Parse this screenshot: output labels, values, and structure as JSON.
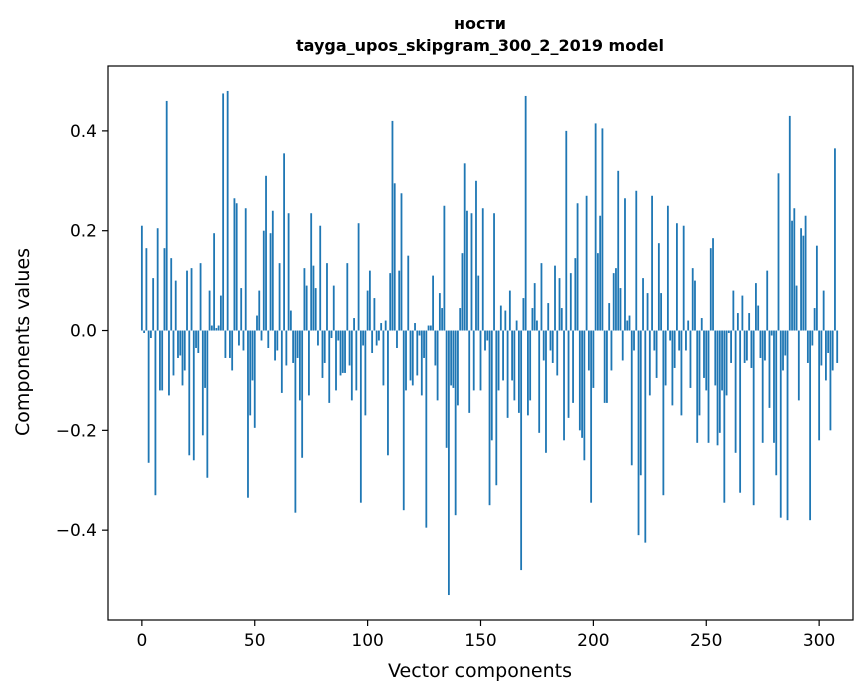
{
  "chart_data": {
    "type": "bar",
    "title": "ности\ntayga_upos_skipgram_300_2_2019 model",
    "title_lines": [
      "ности",
      "tayga_upos_skipgram_300_2_2019 model"
    ],
    "xlabel": "Vector components",
    "ylabel": "Components values",
    "xlim": [
      -15,
      315
    ],
    "ylim": [
      -0.58,
      0.53
    ],
    "xticks": [
      0,
      50,
      100,
      150,
      200,
      250,
      300
    ],
    "yticks": [
      -0.4,
      -0.2,
      0.0,
      0.2,
      0.4
    ],
    "ytick_labels": [
      "−0.4",
      "−0.2",
      "0.0",
      "0.2",
      "0.4"
    ],
    "grid": false,
    "bar_color": "#1f77b4",
    "values": [
      0.21,
      -0.005,
      0.165,
      -0.265,
      -0.015,
      0.105,
      -0.33,
      0.205,
      -0.12,
      -0.12,
      0.165,
      0.46,
      -0.13,
      0.145,
      -0.09,
      0.1,
      -0.055,
      -0.05,
      -0.11,
      -0.08,
      0.12,
      -0.25,
      0.125,
      -0.26,
      -0.035,
      -0.045,
      0.135,
      -0.21,
      -0.115,
      -0.295,
      0.08,
      0.01,
      0.195,
      0.005,
      0.01,
      0.07,
      0.475,
      -0.055,
      0.48,
      -0.055,
      -0.08,
      0.265,
      0.255,
      -0.03,
      0.085,
      -0.04,
      0.245,
      -0.335,
      -0.17,
      -0.1,
      -0.195,
      0.03,
      0.08,
      -0.02,
      0.2,
      0.31,
      -0.035,
      0.195,
      0.24,
      -0.06,
      -0.04,
      0.135,
      -0.125,
      0.355,
      -0.07,
      0.235,
      0.04,
      -0.065,
      -0.365,
      -0.055,
      -0.14,
      -0.255,
      0.125,
      0.09,
      -0.13,
      0.235,
      0.13,
      0.085,
      -0.03,
      0.21,
      -0.095,
      -0.065,
      0.135,
      -0.145,
      -0.015,
      0.09,
      -0.12,
      -0.02,
      -0.09,
      -0.085,
      -0.085,
      0.135,
      -0.07,
      -0.14,
      0.025,
      -0.12,
      0.215,
      -0.345,
      -0.03,
      -0.17,
      0.08,
      0.12,
      -0.045,
      0.065,
      -0.03,
      -0.02,
      0.015,
      -0.11,
      0.02,
      -0.25,
      0.115,
      0.42,
      0.295,
      -0.035,
      0.12,
      0.275,
      -0.36,
      -0.12,
      0.15,
      -0.1,
      -0.11,
      0.015,
      -0.09,
      -0.01,
      -0.13,
      -0.055,
      -0.395,
      0.01,
      0.01,
      0.11,
      -0.07,
      -0.14,
      0.075,
      0.045,
      0.25,
      -0.235,
      -0.53,
      -0.11,
      -0.115,
      -0.37,
      -0.15,
      0.045,
      0.155,
      0.335,
      0.24,
      -0.165,
      0.235,
      -0.12,
      0.3,
      0.11,
      -0.12,
      0.245,
      -0.04,
      -0.02,
      -0.35,
      -0.22,
      0.235,
      -0.31,
      -0.12,
      0.05,
      -0.1,
      0.04,
      -0.175,
      0.08,
      -0.1,
      -0.14,
      0.02,
      -0.165,
      -0.48,
      0.065,
      0.47,
      -0.17,
      -0.14,
      0.045,
      0.095,
      0.02,
      -0.205,
      0.135,
      -0.06,
      -0.245,
      0.055,
      -0.04,
      -0.065,
      0.13,
      -0.09,
      0.105,
      0.045,
      -0.22,
      0.4,
      -0.175,
      0.115,
      -0.145,
      0.145,
      0.255,
      -0.2,
      -0.215,
      -0.26,
      0.27,
      -0.08,
      -0.345,
      -0.115,
      0.415,
      0.155,
      0.23,
      0.405,
      -0.145,
      -0.145,
      0.055,
      -0.08,
      0.115,
      0.125,
      0.32,
      0.085,
      -0.06,
      0.265,
      0.02,
      0.03,
      -0.27,
      -0.04,
      0.28,
      -0.41,
      -0.29,
      0.105,
      -0.425,
      0.075,
      -0.13,
      0.27,
      -0.04,
      -0.095,
      0.175,
      0.075,
      -0.33,
      -0.11,
      0.25,
      -0.02,
      -0.15,
      -0.075,
      0.215,
      -0.04,
      -0.17,
      0.21,
      -0.04,
      0.02,
      -0.115,
      0.125,
      0.1,
      -0.225,
      -0.17,
      0.025,
      -0.095,
      -0.12,
      -0.225,
      0.165,
      0.185,
      -0.11,
      -0.23,
      -0.205,
      -0.12,
      -0.345,
      -0.13,
      -0.005,
      -0.065,
      0.08,
      -0.245,
      0.035,
      -0.325,
      0.07,
      -0.065,
      -0.06,
      0.035,
      -0.075,
      -0.35,
      0.095,
      0.05,
      -0.055,
      -0.225,
      -0.06,
      0.12,
      -0.155,
      -0.01,
      -0.225,
      -0.29,
      0.315,
      -0.375,
      -0.08,
      -0.05,
      -0.38,
      0.43,
      0.22,
      0.245,
      0.09,
      -0.14,
      0.205,
      0.19,
      0.23,
      -0.065,
      -0.38,
      -0.03,
      0.045,
      0.17,
      -0.22,
      -0.07,
      0.08,
      -0.1,
      -0.045,
      -0.2,
      -0.08,
      0.365,
      -0.065
    ]
  }
}
